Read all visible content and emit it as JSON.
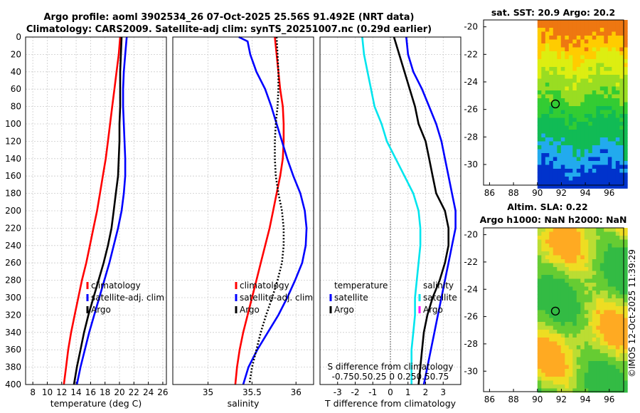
{
  "title": {
    "line1": "Argo profile: aoml 3902534_26 07-Oct-2025 25.56S 91.492E (NRT data)",
    "line2": "Climatology: CARS2009. Satellite-adj clim: synTS_20251007.nc (0.29d earlier)"
  },
  "credit": "©IMOS 12-Oct-2025 11:39:29",
  "colors": {
    "climatology": "#ff0000",
    "satellite": "#0000ff",
    "argo": "#000000",
    "cyan": "#00e5ee",
    "magenta": "#ff00ff"
  },
  "chart_data": [
    {
      "id": "temperature",
      "type": "line",
      "xlabel": "temperature (deg C)",
      "xlim": [
        7,
        26.5
      ],
      "xticks": [
        8,
        10,
        12,
        14,
        16,
        18,
        20,
        22,
        24,
        26
      ],
      "ylim": [
        400,
        0
      ],
      "yticks": [
        0,
        20,
        40,
        60,
        80,
        100,
        120,
        140,
        160,
        180,
        200,
        220,
        240,
        260,
        280,
        300,
        320,
        340,
        360,
        380,
        400
      ],
      "grid": true,
      "legend": {
        "placement": "lower-right",
        "entries": [
          "climatology",
          "satellite-adj. clim",
          "Argo"
        ]
      },
      "series": [
        {
          "name": "climatology",
          "color": "#ff0000",
          "style": "solid",
          "depth": [
            0,
            20,
            40,
            60,
            80,
            100,
            120,
            140,
            160,
            180,
            200,
            220,
            240,
            260,
            280,
            300,
            320,
            340,
            360,
            380,
            400
          ],
          "values": [
            20.1,
            19.9,
            19.6,
            19.3,
            19.0,
            18.7,
            18.4,
            18.1,
            17.7,
            17.3,
            16.9,
            16.4,
            15.9,
            15.4,
            14.8,
            14.3,
            13.8,
            13.3,
            12.9,
            12.6,
            12.3
          ]
        },
        {
          "name": "satellite-adj. clim",
          "color": "#0000ff",
          "style": "solid",
          "depth": [
            0,
            20,
            40,
            60,
            80,
            100,
            120,
            140,
            160,
            180,
            200,
            220,
            240,
            260,
            280,
            300,
            320,
            340,
            360,
            380,
            400
          ],
          "values": [
            21.0,
            20.8,
            20.6,
            20.5,
            20.5,
            20.6,
            20.7,
            20.8,
            20.8,
            20.6,
            20.3,
            19.8,
            19.2,
            18.6,
            17.9,
            17.2,
            16.5,
            15.8,
            15.2,
            14.6,
            14.1
          ]
        },
        {
          "name": "Argo",
          "color": "#000000",
          "style": "solid",
          "depth": [
            0,
            20,
            40,
            60,
            80,
            100,
            120,
            140,
            160,
            180,
            200,
            220,
            240,
            260,
            280,
            300,
            320,
            340,
            360,
            380,
            400
          ],
          "values": [
            20.3,
            20.2,
            20.1,
            20.1,
            20.1,
            20.0,
            20.0,
            19.9,
            19.8,
            19.5,
            19.2,
            18.9,
            18.4,
            17.8,
            17.1,
            16.4,
            15.7,
            15.1,
            14.6,
            14.1,
            13.7
          ]
        }
      ]
    },
    {
      "id": "salinity",
      "type": "line",
      "xlabel": "salinity",
      "xlim": [
        34.6,
        36.2
      ],
      "xticks": [
        35,
        35.5,
        36
      ],
      "ylim": [
        400,
        0
      ],
      "grid": true,
      "legend": {
        "placement": "lower-right",
        "entries": [
          "climatology",
          "satellite-adj. clim",
          "Argo"
        ]
      },
      "series": [
        {
          "name": "climatology",
          "color": "#ff0000",
          "style": "solid",
          "depth": [
            0,
            20,
            40,
            60,
            80,
            100,
            120,
            140,
            160,
            180,
            200,
            220,
            240,
            260,
            280,
            300,
            320,
            340,
            360,
            380,
            400
          ],
          "values": [
            35.76,
            35.78,
            35.8,
            35.82,
            35.85,
            35.86,
            35.86,
            35.85,
            35.82,
            35.78,
            35.74,
            35.7,
            35.65,
            35.6,
            35.55,
            35.5,
            35.45,
            35.4,
            35.36,
            35.33,
            35.31
          ]
        },
        {
          "name": "satellite-adj. clim",
          "color": "#0000ff",
          "style": "solid",
          "depth": [
            0,
            5,
            20,
            40,
            60,
            80,
            100,
            120,
            140,
            160,
            180,
            200,
            220,
            240,
            260,
            280,
            300,
            320,
            340,
            360,
            380,
            400
          ],
          "values": [
            35.35,
            35.45,
            35.48,
            35.55,
            35.65,
            35.72,
            35.78,
            35.84,
            35.9,
            35.97,
            36.05,
            36.1,
            36.12,
            36.11,
            36.07,
            35.99,
            35.9,
            35.8,
            35.68,
            35.56,
            35.46,
            35.4
          ]
        },
        {
          "name": "Argo",
          "color": "#000000",
          "style": "dotted",
          "depth": [
            0,
            20,
            40,
            60,
            80,
            100,
            120,
            140,
            160,
            180,
            200,
            220,
            240,
            260,
            280,
            300,
            320,
            340,
            360,
            380,
            400
          ],
          "values": [
            35.78,
            35.79,
            35.8,
            35.8,
            35.79,
            35.77,
            35.76,
            35.76,
            35.77,
            35.8,
            35.84,
            35.86,
            35.86,
            35.84,
            35.79,
            35.73,
            35.66,
            35.6,
            35.55,
            35.5,
            35.47
          ]
        }
      ]
    },
    {
      "id": "difference",
      "type": "line",
      "xlabel": "T difference from climatology",
      "xlabel_top": "S difference from climatology",
      "xlim": [
        -4,
        4
      ],
      "xticks": [
        -3,
        -2,
        -1,
        0,
        1,
        2,
        3
      ],
      "xticks_top_text": "-0.750.50.25  0  0.250.50.75",
      "ylim": [
        400,
        0
      ],
      "grid": true,
      "legend": {
        "temperature_header": "temperature",
        "salinity_header": "salinity",
        "entries_left": [
          "satellite",
          "Argo"
        ],
        "entries_right": [
          "satellite",
          "Argo"
        ]
      },
      "series": [
        {
          "name": "T satellite",
          "color": "#0000ff",
          "style": "solid",
          "depth": [
            0,
            20,
            40,
            60,
            80,
            100,
            120,
            140,
            160,
            180,
            200,
            220,
            240,
            260,
            280,
            300,
            320,
            340,
            360,
            380,
            400
          ],
          "values": [
            0.9,
            1.0,
            1.3,
            1.8,
            2.2,
            2.6,
            2.9,
            3.1,
            3.3,
            3.5,
            3.7,
            3.7,
            3.5,
            3.3,
            3.1,
            2.9,
            2.7,
            2.5,
            2.3,
            2.1,
            1.9
          ]
        },
        {
          "name": "T Argo",
          "color": "#000000",
          "style": "solid",
          "depth": [
            0,
            20,
            40,
            60,
            80,
            100,
            120,
            140,
            160,
            180,
            200,
            220,
            240,
            260,
            280,
            300,
            320,
            340,
            360,
            380,
            400
          ],
          "values": [
            0.2,
            0.5,
            0.8,
            1.1,
            1.4,
            1.6,
            2.0,
            2.2,
            2.4,
            2.6,
            3.1,
            3.3,
            3.3,
            3.1,
            2.8,
            2.4,
            2.1,
            1.9,
            1.8,
            1.7,
            1.6
          ]
        },
        {
          "name": "S satellite",
          "color": "#00e5ee",
          "style": "solid",
          "depth": [
            0,
            20,
            40,
            60,
            80,
            100,
            120,
            140,
            160,
            180,
            200,
            220,
            240,
            260,
            280,
            300,
            320,
            340,
            360,
            380,
            400
          ],
          "values": [
            -1.6,
            -1.5,
            -1.3,
            -1.1,
            -0.9,
            -0.5,
            -0.2,
            0.3,
            0.8,
            1.3,
            1.6,
            1.7,
            1.7,
            1.6,
            1.5,
            1.4,
            1.4,
            1.3,
            1.2,
            1.2,
            1.2
          ]
        }
      ]
    },
    {
      "id": "sst_map",
      "type": "heatmap",
      "title": "sat. SST: 20.9 Argo: 20.2",
      "xlim": [
        85.5,
        97.2
      ],
      "ylim": [
        -31.5,
        -19.5
      ],
      "xticks": [
        86,
        88,
        90,
        92,
        94,
        96
      ],
      "yticks": [
        -20,
        -22,
        -24,
        -26,
        -28,
        -30
      ],
      "data_extent_x": [
        90,
        97.2
      ],
      "marker": {
        "lon": 91.5,
        "lat": -25.6
      },
      "colorbands": [
        [
          -31.5,
          "#0033cc"
        ],
        [
          -30,
          "#22aaee"
        ],
        [
          -28.5,
          "#11bb55"
        ],
        [
          -26.5,
          "#33cc33"
        ],
        [
          -25,
          "#99dd22"
        ],
        [
          -23.5,
          "#ddee11"
        ],
        [
          -22,
          "#ffcc00"
        ],
        [
          -20.8,
          "#ee7711"
        ]
      ]
    },
    {
      "id": "sla_map",
      "type": "heatmap",
      "title": "Altim. SLA: 0.22",
      "subtitle": "Argo h1000: NaN h2000: NaN",
      "xlim": [
        85.5,
        97.2
      ],
      "ylim": [
        -31.5,
        -19.5
      ],
      "xticks": [
        86,
        88,
        90,
        92,
        94,
        96
      ],
      "yticks": [
        -20,
        -22,
        -24,
        -26,
        -28,
        -30
      ],
      "data_extent_x": [
        90,
        97.2
      ],
      "marker": {
        "lon": 91.5,
        "lat": -25.6
      }
    }
  ]
}
